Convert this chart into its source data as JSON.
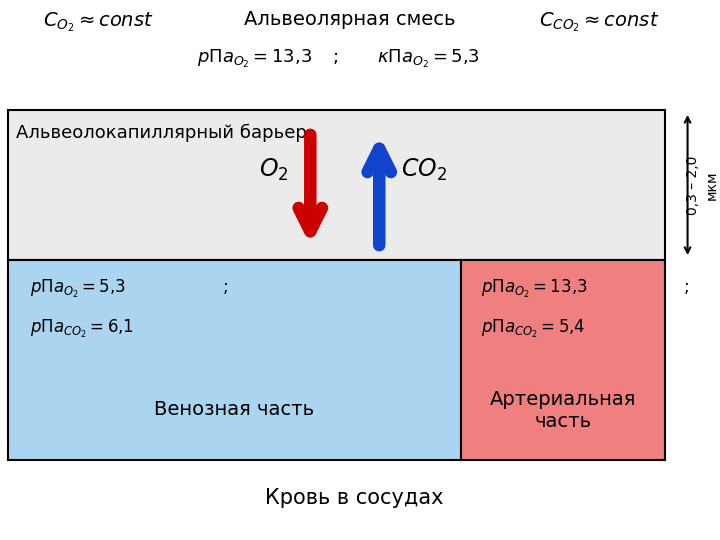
{
  "title_alveolar": "Альвеолярная смесь",
  "title_barrier": "Альвеолокапиллярный барьер",
  "title_blood": "Кровь в сосудах",
  "title_venous": "Венозная часть",
  "title_arterial": "Артериальная\nчасть",
  "barrier_color": "#ebebeb",
  "venous_color": "#aad4f0",
  "arterial_color": "#f08080",
  "arrow_red": "#cc0000",
  "arrow_blue": "#1144cc",
  "border_color": "#000000",
  "text_color": "#000000",
  "dim_label": "0,3 – 2,0\nмкм",
  "fig_width": 7.2,
  "fig_height": 5.4,
  "dpi": 100
}
